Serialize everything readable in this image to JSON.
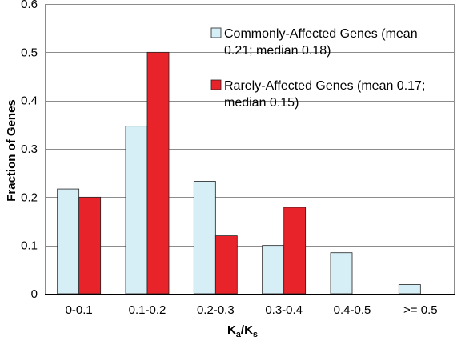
{
  "chart_data": {
    "type": "bar",
    "categories": [
      "0-0.1",
      "0.1-0.2",
      "0.2-0.3",
      "0.3-0.4",
      "0.4-0.5",
      ">= 0.5"
    ],
    "series": [
      {
        "name": "Commonly-Affected Genes (mean 0.21; median 0.18)",
        "legend_lines": [
          "Commonly-Affected Genes (mean",
          "0.21; median 0.18)"
        ],
        "values": [
          0.217,
          0.347,
          0.233,
          0.1,
          0.085,
          0.019
        ],
        "color": "#d6eef6"
      },
      {
        "name": "Rarely-Affected Genes (mean 0.17; median 0.15)",
        "legend_lines": [
          "Rarely-Affected Genes (mean 0.17;",
          "median 0.15)"
        ],
        "values": [
          0.2,
          0.5,
          0.12,
          0.179,
          0,
          0
        ],
        "color": "#e8232a"
      }
    ],
    "xlabel": "Ka/Ks",
    "xlabel_main": "K",
    "xlabel_sub1": "a",
    "xlabel_sep": "/K",
    "xlabel_sub2": "s",
    "ylabel": "Fraction of Genes",
    "ylim": [
      0,
      0.6
    ],
    "yticks": [
      "0",
      "0.1",
      "0.2",
      "0.3",
      "0.4",
      "0.5",
      "0.6"
    ],
    "grid": true,
    "legend_position": "top-right"
  }
}
